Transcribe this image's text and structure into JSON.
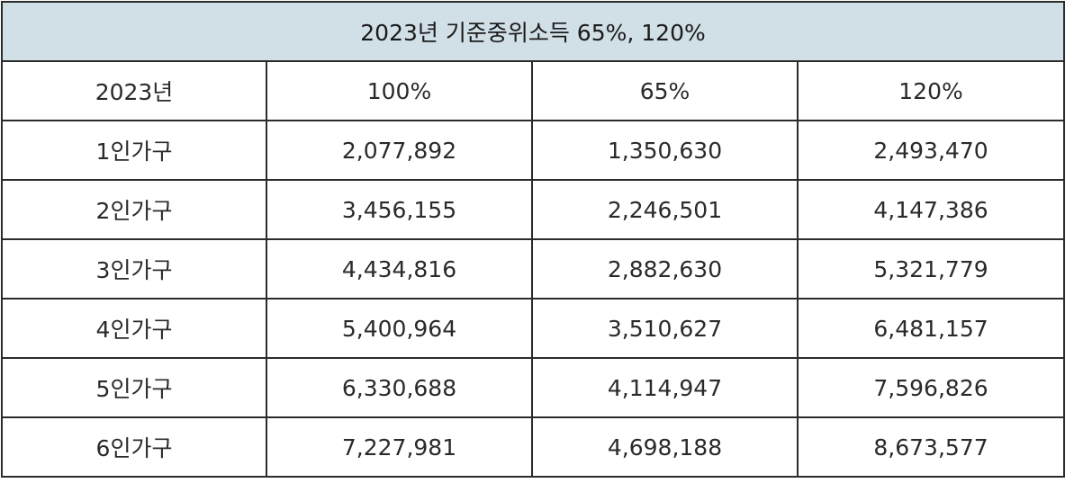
{
  "table": {
    "title": "2023년 기준중위소득 65%, 120%",
    "headers": [
      "2023년",
      "100%",
      "65%",
      "120%"
    ],
    "rows": [
      [
        "1인가구",
        "2,077,892",
        "1,350,630",
        "2,493,470"
      ],
      [
        "2인가구",
        "3,456,155",
        "2,246,501",
        "4,147,386"
      ],
      [
        "3인가구",
        "4,434,816",
        "2,882,630",
        "5,321,779"
      ],
      [
        "4인가구",
        "5,400,964",
        "3,510,627",
        "6,481,157"
      ],
      [
        "5인가구",
        "6,330,688",
        "4,114,947",
        "7,596,826"
      ],
      [
        "6인가구",
        "7,227,981",
        "4,698,188",
        "8,673,577"
      ]
    ]
  },
  "colors": {
    "title_background": "#d1dfe7",
    "border": "#2b2b2b",
    "text": "#222222"
  }
}
